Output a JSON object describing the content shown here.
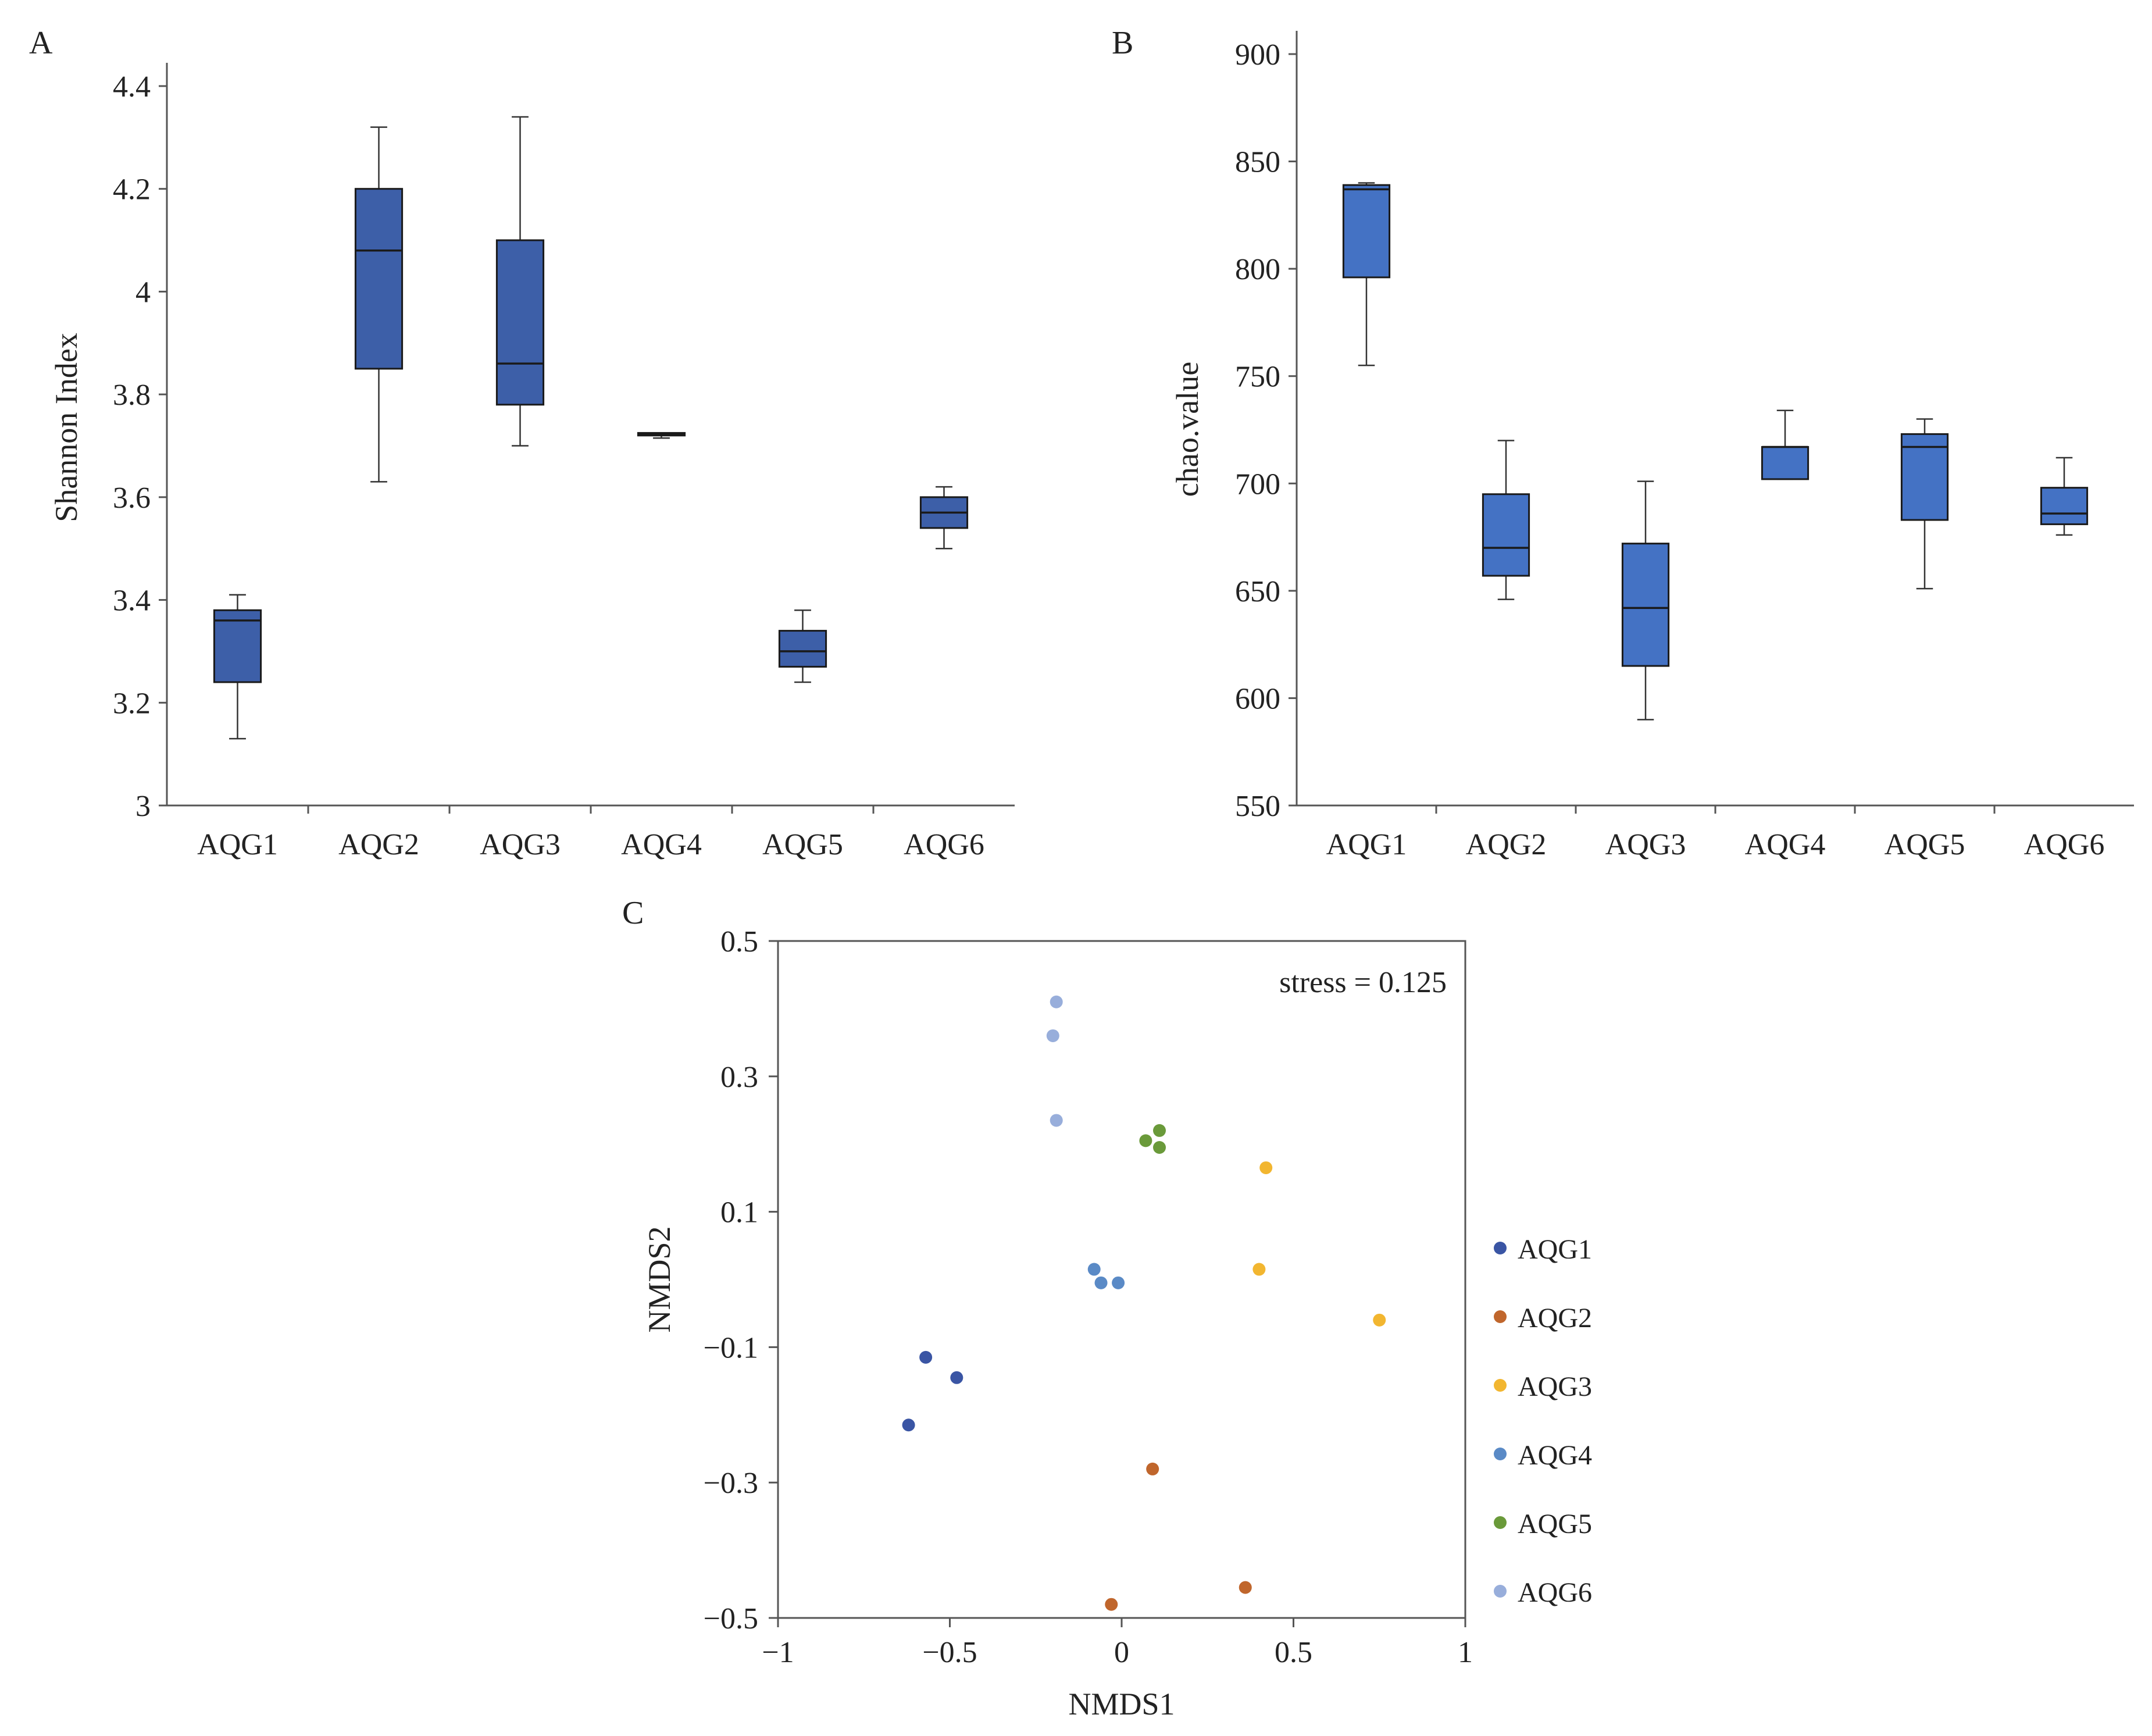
{
  "colors": {
    "box_fill_a": "#3d5fa8",
    "box_fill_b": "#4472c4",
    "box_stroke": "#1a1a1a",
    "series": {
      "AQG1": "#3a55a4",
      "AQG2": "#c0662c",
      "AQG3": "#f2b630",
      "AQG4": "#5a8ac6",
      "AQG5": "#6a9a3a",
      "AQG6": "#98aedb"
    }
  },
  "chart_data": [
    {
      "panel": "A",
      "type": "boxplot",
      "ylabel": "Shannon Index",
      "ylim": [
        3,
        4.4
      ],
      "yticks": [
        "3",
        "3.2",
        "3.4",
        "3.6",
        "3.8",
        "4",
        "4.2",
        "4.4"
      ],
      "yticks_values": [
        3,
        3.2,
        3.4,
        3.6,
        3.8,
        4,
        4.2,
        4.4
      ],
      "categories": [
        "AQG1",
        "AQG2",
        "AQG3",
        "AQG4",
        "AQG5",
        "AQG6"
      ],
      "boxes": [
        {
          "min": 3.13,
          "q1": 3.24,
          "median": 3.36,
          "q3": 3.38,
          "max": 3.41
        },
        {
          "min": 3.63,
          "q1": 3.85,
          "median": 4.08,
          "q3": 4.2,
          "max": 4.32
        },
        {
          "min": 3.7,
          "q1": 3.78,
          "median": 3.86,
          "q3": 4.1,
          "max": 4.34
        },
        {
          "min": 3.715,
          "q1": 3.72,
          "median": 3.722,
          "q3": 3.725,
          "max": 3.725
        },
        {
          "min": 3.24,
          "q1": 3.27,
          "median": 3.3,
          "q3": 3.34,
          "max": 3.38
        },
        {
          "min": 3.5,
          "q1": 3.54,
          "median": 3.57,
          "q3": 3.6,
          "max": 3.62
        }
      ]
    },
    {
      "panel": "B",
      "type": "boxplot",
      "ylabel": "chao.value",
      "ylim": [
        550,
        900
      ],
      "yticks": [
        "550",
        "600",
        "650",
        "700",
        "750",
        "800",
        "850",
        "900"
      ],
      "yticks_values": [
        550,
        600,
        650,
        700,
        750,
        800,
        850,
        900
      ],
      "categories": [
        "AQG1",
        "AQG2",
        "AQG3",
        "AQG4",
        "AQG5",
        "AQG6"
      ],
      "boxes": [
        {
          "min": 755,
          "q1": 796,
          "median": 837,
          "q3": 839,
          "max": 840
        },
        {
          "min": 646,
          "q1": 657,
          "median": 670,
          "q3": 695,
          "max": 720
        },
        {
          "min": 590,
          "q1": 615,
          "median": 642,
          "q3": 672,
          "max": 701
        },
        {
          "min": 702,
          "q1": 702,
          "median": 717,
          "q3": 717,
          "max": 734
        },
        {
          "min": 651,
          "q1": 683,
          "median": 717,
          "q3": 723,
          "max": 730
        },
        {
          "min": 676,
          "q1": 681,
          "median": 686,
          "q3": 698,
          "max": 712
        }
      ]
    },
    {
      "panel": "C",
      "type": "scatter",
      "xlabel": "NMDS1",
      "ylabel": "NMDS2",
      "xlim": [
        -1,
        1
      ],
      "ylim": [
        -0.5,
        0.5
      ],
      "xticks": [
        "−1",
        "−0.5",
        "0",
        "0.5",
        "1"
      ],
      "xticks_values": [
        -1,
        -0.5,
        0,
        0.5,
        1
      ],
      "yticks": [
        "−0.5",
        "−0.3",
        "−0.1",
        "0.1",
        "0.3",
        "0.5"
      ],
      "yticks_values": [
        -0.5,
        -0.3,
        -0.1,
        0.1,
        0.3,
        0.5
      ],
      "annotation": "stress = 0.125",
      "legend_position": "right",
      "series": [
        {
          "name": "AQG1",
          "points": [
            [
              -0.57,
              -0.115
            ],
            [
              -0.48,
              -0.145
            ],
            [
              -0.62,
              -0.215
            ]
          ]
        },
        {
          "name": "AQG2",
          "points": [
            [
              0.09,
              -0.28
            ],
            [
              0.36,
              -0.455
            ],
            [
              -0.03,
              -0.48
            ]
          ]
        },
        {
          "name": "AQG3",
          "points": [
            [
              0.42,
              0.165
            ],
            [
              0.4,
              0.015
            ],
            [
              0.75,
              -0.06
            ]
          ]
        },
        {
          "name": "AQG4",
          "points": [
            [
              -0.08,
              0.015
            ],
            [
              -0.06,
              -0.005
            ],
            [
              -0.01,
              -0.005
            ]
          ]
        },
        {
          "name": "AQG5",
          "points": [
            [
              0.07,
              0.205
            ],
            [
              0.11,
              0.22
            ],
            [
              0.11,
              0.195
            ]
          ]
        },
        {
          "name": "AQG6",
          "points": [
            [
              -0.19,
              0.41
            ],
            [
              -0.2,
              0.36
            ],
            [
              -0.19,
              0.235
            ]
          ]
        }
      ]
    }
  ]
}
